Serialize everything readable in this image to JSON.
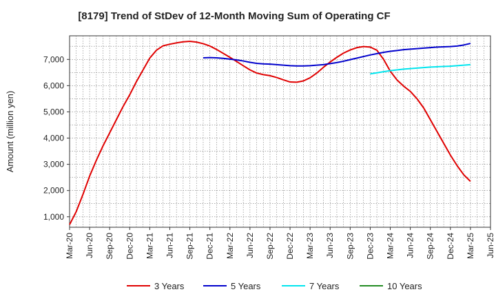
{
  "chart_data": {
    "type": "line",
    "title": "[8179]  Trend of StDev of 12-Month Moving Sum of Operating CF",
    "ylabel": "Amount (million yen)",
    "xlabel": "",
    "ylim": [
      600,
      7900
    ],
    "xlim": [
      "2020-03",
      "2025-06"
    ],
    "y_ticks": [
      "1,000",
      "2,000",
      "3,000",
      "4,000",
      "5,000",
      "6,000",
      "7,000"
    ],
    "x_ticks": [
      "Mar-20",
      "Jun-20",
      "Sep-20",
      "Dec-20",
      "Mar-21",
      "Jun-21",
      "Sep-21",
      "Dec-21",
      "Mar-22",
      "Jun-22",
      "Sep-22",
      "Dec-22",
      "Mar-23",
      "Jun-23",
      "Sep-23",
      "Dec-23",
      "Mar-24",
      "Jun-24",
      "Sep-24",
      "Dec-24",
      "Mar-25",
      "Jun-25"
    ],
    "grid": true,
    "legend_position": "bottom",
    "series": [
      {
        "name": "3 Years",
        "color": "#e00000",
        "points": [
          [
            "2020-03",
            700
          ],
          [
            "2020-04",
            1200
          ],
          [
            "2020-05",
            1850
          ],
          [
            "2020-06",
            2550
          ],
          [
            "2020-07",
            3150
          ],
          [
            "2020-08",
            3700
          ],
          [
            "2020-09",
            4200
          ],
          [
            "2020-10",
            4700
          ],
          [
            "2020-11",
            5200
          ],
          [
            "2020-12",
            5650
          ],
          [
            "2020-13",
            6150
          ],
          [
            "2021-02",
            6600
          ],
          [
            "2021-03",
            7050
          ],
          [
            "2021-04",
            7350
          ],
          [
            "2021-05",
            7520
          ],
          [
            "2021-06",
            7580
          ],
          [
            "2021-07",
            7630
          ],
          [
            "2021-08",
            7670
          ],
          [
            "2021-09",
            7690
          ],
          [
            "2021-10",
            7660
          ],
          [
            "2021-11",
            7600
          ],
          [
            "2021-12",
            7510
          ],
          [
            "2022-01",
            7380
          ],
          [
            "2022-02",
            7230
          ],
          [
            "2022-03",
            7080
          ],
          [
            "2022-04",
            6920
          ],
          [
            "2022-05",
            6760
          ],
          [
            "2022-06",
            6600
          ],
          [
            "2022-07",
            6480
          ],
          [
            "2022-08",
            6420
          ],
          [
            "2022-09",
            6380
          ],
          [
            "2022-10",
            6310
          ],
          [
            "2022-11",
            6220
          ],
          [
            "2022-12",
            6140
          ],
          [
            "2023-01",
            6130
          ],
          [
            "2023-02",
            6180
          ],
          [
            "2023-03",
            6300
          ],
          [
            "2023-04",
            6480
          ],
          [
            "2023-05",
            6700
          ],
          [
            "2023-06",
            6900
          ],
          [
            "2023-07",
            7080
          ],
          [
            "2023-08",
            7240
          ],
          [
            "2023-09",
            7360
          ],
          [
            "2023-10",
            7450
          ],
          [
            "2023-11",
            7490
          ],
          [
            "2023-12",
            7470
          ],
          [
            "2024-01",
            7350
          ],
          [
            "2024-02",
            7000
          ],
          [
            "2024-03",
            6550
          ],
          [
            "2024-04",
            6220
          ],
          [
            "2024-05",
            5980
          ],
          [
            "2024-06",
            5780
          ],
          [
            "2024-07",
            5500
          ],
          [
            "2024-08",
            5150
          ],
          [
            "2024-09",
            4700
          ],
          [
            "2024-10",
            4250
          ],
          [
            "2024-11",
            3800
          ],
          [
            "2024-12",
            3350
          ],
          [
            "2025-01",
            2950
          ],
          [
            "2025-02",
            2600
          ],
          [
            "2025-03",
            2350
          ]
        ]
      },
      {
        "name": "5 Years",
        "color": "#0000cc",
        "points": [
          [
            "2021-11",
            7060
          ],
          [
            "2021-12",
            7070
          ],
          [
            "2022-01",
            7060
          ],
          [
            "2022-02",
            7040
          ],
          [
            "2022-03",
            7010
          ],
          [
            "2022-04",
            6980
          ],
          [
            "2022-05",
            6940
          ],
          [
            "2022-06",
            6890
          ],
          [
            "2022-07",
            6850
          ],
          [
            "2022-08",
            6830
          ],
          [
            "2022-09",
            6820
          ],
          [
            "2022-10",
            6800
          ],
          [
            "2022-11",
            6780
          ],
          [
            "2022-12",
            6760
          ],
          [
            "2023-01",
            6750
          ],
          [
            "2023-02",
            6750
          ],
          [
            "2023-03",
            6760
          ],
          [
            "2023-04",
            6780
          ],
          [
            "2023-05",
            6800
          ],
          [
            "2023-06",
            6840
          ],
          [
            "2023-07",
            6880
          ],
          [
            "2023-08",
            6930
          ],
          [
            "2023-09",
            6990
          ],
          [
            "2023-10",
            7050
          ],
          [
            "2023-11",
            7110
          ],
          [
            "2023-12",
            7170
          ],
          [
            "2024-01",
            7220
          ],
          [
            "2024-02",
            7270
          ],
          [
            "2024-03",
            7310
          ],
          [
            "2024-04",
            7340
          ],
          [
            "2024-05",
            7370
          ],
          [
            "2024-06",
            7390
          ],
          [
            "2024-07",
            7410
          ],
          [
            "2024-08",
            7430
          ],
          [
            "2024-09",
            7450
          ],
          [
            "2024-10",
            7470
          ],
          [
            "2024-11",
            7480
          ],
          [
            "2024-12",
            7490
          ],
          [
            "2025-01",
            7510
          ],
          [
            "2025-02",
            7550
          ],
          [
            "2025-03",
            7610
          ]
        ]
      },
      {
        "name": "7 Years",
        "color": "#00e5ee",
        "points": [
          [
            "2023-12",
            6450
          ],
          [
            "2024-01",
            6490
          ],
          [
            "2024-02",
            6530
          ],
          [
            "2024-03",
            6570
          ],
          [
            "2024-04",
            6600
          ],
          [
            "2024-05",
            6630
          ],
          [
            "2024-06",
            6650
          ],
          [
            "2024-07",
            6670
          ],
          [
            "2024-08",
            6690
          ],
          [
            "2024-09",
            6710
          ],
          [
            "2024-10",
            6720
          ],
          [
            "2024-11",
            6730
          ],
          [
            "2024-12",
            6740
          ],
          [
            "2025-01",
            6760
          ],
          [
            "2025-02",
            6780
          ],
          [
            "2025-03",
            6800
          ]
        ]
      },
      {
        "name": "10 Years",
        "color": "#228b22",
        "points": []
      }
    ]
  }
}
